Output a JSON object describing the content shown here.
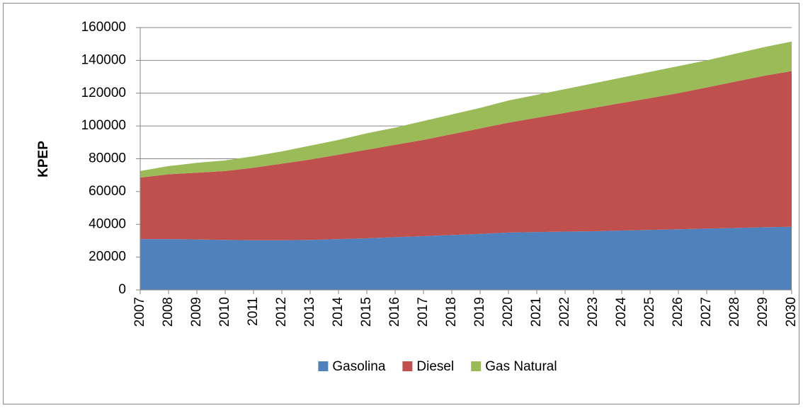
{
  "chart_data": {
    "type": "stacked_area",
    "y_label": "KPEP",
    "categories": [
      "2007",
      "2008",
      "2009",
      "2010",
      "2011",
      "2012",
      "2013",
      "2014",
      "2015",
      "2016",
      "2017",
      "2018",
      "2019",
      "2020",
      "2021",
      "2022",
      "2023",
      "2024",
      "2025",
      "2026",
      "2027",
      "2028",
      "2029",
      "2030"
    ],
    "series": [
      {
        "name": "Gasolina",
        "color": "#4f81bd",
        "values": [
          31000,
          31000,
          30800,
          30500,
          30300,
          30300,
          30500,
          31000,
          31500,
          32200,
          32800,
          33500,
          34200,
          35000,
          35300,
          35600,
          35800,
          36200,
          36600,
          37000,
          37400,
          37800,
          38200,
          38500
        ]
      },
      {
        "name": "Diesel",
        "color": "#c0504d",
        "values": [
          37500,
          39500,
          40700,
          42000,
          44200,
          46700,
          49000,
          51500,
          54000,
          56300,
          58700,
          61500,
          64300,
          67000,
          69700,
          72400,
          75200,
          77800,
          80400,
          83000,
          86100,
          89200,
          92300,
          95000
        ]
      },
      {
        "name": "Gas Natural",
        "color": "#9bbb59",
        "values": [
          4000,
          5000,
          6000,
          6500,
          7000,
          7500,
          8500,
          9000,
          10000,
          10500,
          11500,
          12000,
          12500,
          13500,
          14000,
          14500,
          15000,
          15500,
          16000,
          16500,
          16500,
          17000,
          17500,
          18000
        ]
      }
    ],
    "ylim": [
      0,
      160000
    ],
    "yticks": [
      0,
      20000,
      40000,
      60000,
      80000,
      100000,
      120000,
      140000,
      160000
    ],
    "grid": true,
    "legend": "bottom"
  }
}
